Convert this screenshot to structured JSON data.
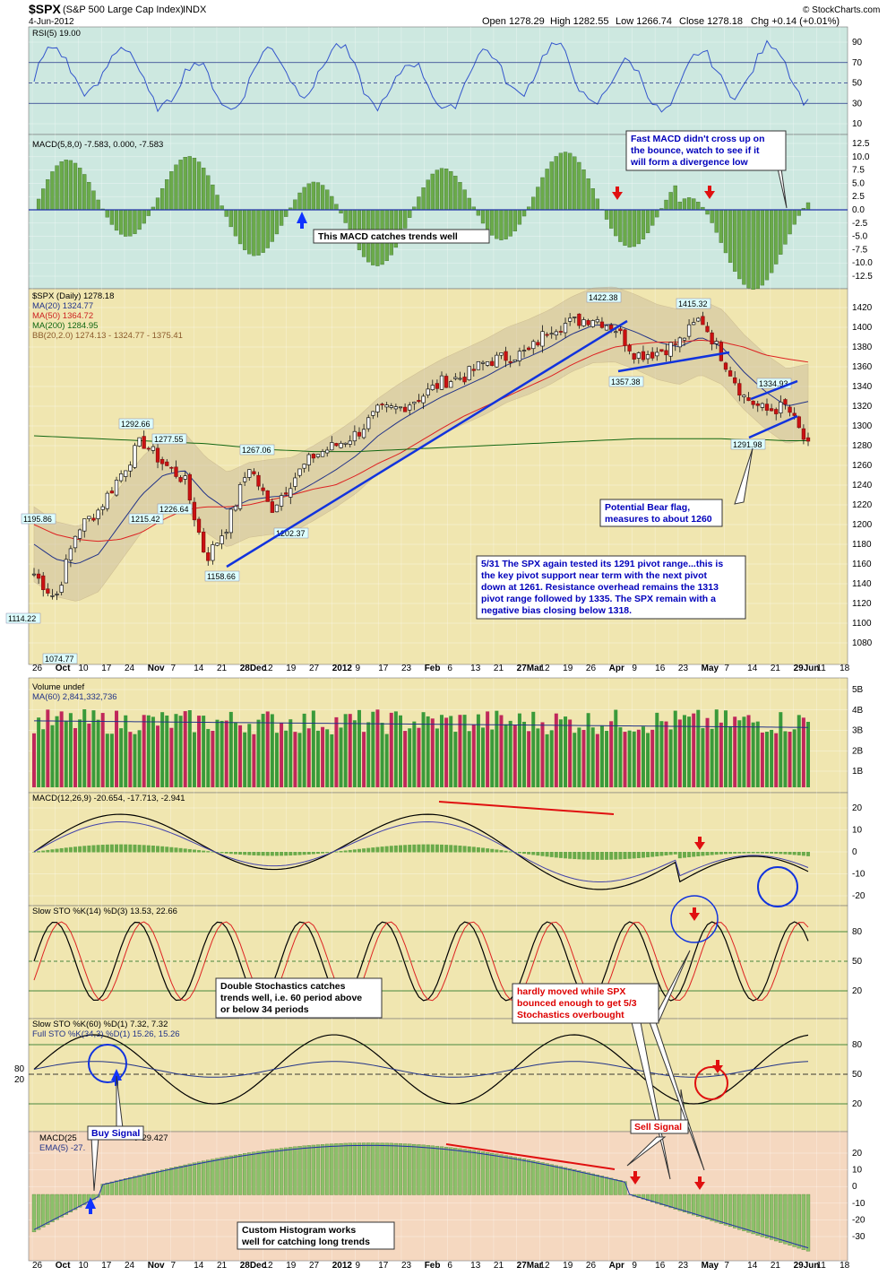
{
  "header": {
    "symbol": "$SPX",
    "name": "(S&P 500 Large Cap Index)",
    "exchange": "INDX",
    "date": "4-Jun-2012",
    "open": "Open 1278.29",
    "high": "High 1282.55",
    "low": "Low 1266.74",
    "close": "Close 1278.18",
    "chg": "Chg +0.14 (+0.01%)",
    "copyright": "© StockCharts.com"
  },
  "x_axis": {
    "labels": [
      "26",
      "Oct",
      "10",
      "17",
      "24",
      "Nov",
      "7",
      "14",
      "21",
      "28Dec",
      "12",
      "19",
      "27",
      "2012",
      "9",
      "17",
      "23",
      "Feb",
      "6",
      "13",
      "21",
      "27Mar",
      "12",
      "19",
      "26",
      "Apr",
      "9",
      "16",
      "23",
      "May",
      "7",
      "14",
      "21",
      "29Jun",
      "11",
      "18"
    ]
  },
  "panels": {
    "rsi": {
      "title": "RSI(5) 19.00",
      "ticks": [
        "90",
        "70",
        "50",
        "30",
        "10"
      ]
    },
    "macd_fast": {
      "title": "MACD(5,8,0) -7.583, 0.000, -7.583",
      "ticks": [
        "12.5",
        "10.0",
        "7.5",
        "5.0",
        "2.5",
        "0.0",
        "-2.5",
        "-5.0",
        "-7.5",
        "-10.0",
        "-12.5"
      ]
    },
    "price": {
      "legend": [
        "$SPX (Daily) 1278.18",
        "MA(20) 1324.77",
        "MA(50) 1364.72",
        "MA(200) 1284.95",
        "BB(20,2.0) 1274.13 - 1324.77 - 1375.41"
      ],
      "ticks": [
        "1420",
        "1400",
        "1380",
        "1360",
        "1340",
        "1320",
        "1300",
        "1280",
        "1260",
        "1240",
        "1220",
        "1200",
        "1180",
        "1160",
        "1140",
        "1120",
        "1100",
        "1080"
      ]
    },
    "volume": {
      "legend": [
        "Volume undef",
        "MA(60) 2,841,332,736"
      ],
      "ticks": [
        "5B",
        "4B",
        "3B",
        "2B",
        "1B"
      ]
    },
    "macd": {
      "title": "MACD(12,26,9) -20.654, -17.713, -2.941",
      "ticks": [
        "20",
        "10",
        "0",
        "-10",
        "-20"
      ]
    },
    "sto1": {
      "title": "Slow STO %K(14) %D(3) 13.53, 22.66",
      "ticks": [
        "80",
        "50",
        "20"
      ]
    },
    "sto2": {
      "title1": "Slow STO %K(60) %D(1) 7.32, 7.32",
      "title2": "Full STO %K(34,3) %D(1) 15.26, 15.26",
      "ticks": [
        "80",
        "50",
        "20"
      ],
      "left_ticks": [
        "80",
        "20"
      ]
    },
    "macd_custom": {
      "title1": "MACD(25",
      "title1b": "t -29.427",
      "title2": "EMA(5) -27.",
      "ticks": [
        "20",
        "10",
        "0",
        "-10",
        "-20",
        "-30"
      ]
    }
  },
  "price_labels": [
    "1422.38",
    "1415.32",
    "1357.38",
    "1334.93",
    "1291.98",
    "1292.66",
    "1277.55",
    "1267.06",
    "1195.86",
    "1215.42",
    "1226.64",
    "1202.37",
    "1158.66",
    "1114.22",
    "1074.77"
  ],
  "annotations": {
    "fast_macd": [
      "Fast MACD didn't cross up on",
      "the bounce, watch to see if it",
      "will form a divergence low"
    ],
    "macd_trend": "This MACD catches trends well",
    "bear_flag": [
      "Potential Bear flag,",
      "measures to about 1260"
    ],
    "pivot": [
      "5/31 The SPX again tested its 1291 pivot range...this is",
      "the key pivot support near term with the next pivot",
      "down at 1261. Resistance overhead remains the 1313",
      "pivot range followed by 1335. The SPX remain with a",
      "negative bias closing below 1318."
    ],
    "double_sto": [
      "Double Stochastics catches",
      "trends well, i.e. 60 period above",
      "or below 34 periods"
    ],
    "hardly": [
      "hardly moved while SPX",
      "bounced enough to get 5/3",
      "Stochastics overbought"
    ],
    "buy": "Buy Signal",
    "sell": "Sell Signal",
    "histogram": [
      "Custom Histogram works",
      "well for catching long trends"
    ]
  },
  "colors": {
    "up": "#1a1a1a",
    "down": "#cc1111",
    "ma20": "#223388",
    "ma50": "#dd2222",
    "ma200": "#116611",
    "trend": "#1133dd",
    "vol_up": "#3a9a3a",
    "vol_down": "#c0285a"
  },
  "chart_data": [
    {
      "type": "line",
      "title": "$SPX (S&P 500 Large Cap Index) INDX",
      "ylim": [
        1070,
        1430
      ],
      "x": [
        "Sep 26",
        "Oct 3",
        "Oct 10",
        "Oct 17",
        "Oct 24",
        "Oct 31",
        "Nov 7",
        "Nov 14",
        "Nov 21",
        "Nov 28",
        "Dec 5",
        "Dec 12",
        "Dec 19",
        "Dec 27",
        "Jan 3",
        "Jan 9",
        "Jan 17",
        "Jan 23",
        "Jan 30",
        "Feb 6",
        "Feb 13",
        "Feb 21",
        "Feb 27",
        "Mar 5",
        "Mar 12",
        "Mar 19",
        "Mar 26",
        "Apr 2",
        "Apr 9",
        "Apr 16",
        "Apr 23",
        "Apr 30",
        "May 7",
        "May 14",
        "May 21",
        "May 29",
        "Jun 4"
      ],
      "series": [
        {
          "name": "$SPX (Daily)",
          "values": [
            1150,
            1125,
            1195,
            1215,
            1250,
            1285,
            1262,
            1245,
            1165,
            1200,
            1260,
            1215,
            1245,
            1270,
            1280,
            1292,
            1315,
            1318,
            1330,
            1345,
            1350,
            1365,
            1370,
            1375,
            1400,
            1405,
            1410,
            1400,
            1372,
            1375,
            1385,
            1410,
            1370,
            1330,
            1315,
            1320,
            1278
          ]
        },
        {
          "name": "MA(20)",
          "values": [
            1180,
            1165,
            1160,
            1170,
            1200,
            1230,
            1250,
            1255,
            1230,
            1215,
            1225,
            1228,
            1230,
            1242,
            1255,
            1270,
            1290,
            1305,
            1318,
            1330,
            1340,
            1350,
            1362,
            1370,
            1380,
            1393,
            1402,
            1403,
            1395,
            1385,
            1380,
            1390,
            1380,
            1355,
            1335,
            1320,
            1324.77
          ]
        },
        {
          "name": "MA(50)",
          "values": [
            1200,
            1190,
            1185,
            1183,
            1185,
            1192,
            1205,
            1215,
            1218,
            1218,
            1220,
            1225,
            1230,
            1236,
            1240,
            1250,
            1262,
            1272,
            1285,
            1298,
            1310,
            1320,
            1330,
            1340,
            1350,
            1362,
            1372,
            1380,
            1383,
            1385,
            1385,
            1387,
            1385,
            1380,
            1372,
            1368,
            1364.72
          ]
        },
        {
          "name": "MA(200)",
          "values": [
            1290,
            1289,
            1288,
            1287,
            1286,
            1285,
            1284,
            1283,
            1282,
            1280,
            1278,
            1276,
            1275,
            1274,
            1274,
            1274,
            1275,
            1276,
            1277,
            1278,
            1279,
            1280,
            1281,
            1282,
            1283,
            1284,
            1285,
            1286,
            1287,
            1287,
            1287,
            1287,
            1287,
            1286,
            1286,
            1285,
            1284.95
          ]
        }
      ]
    }
  ]
}
